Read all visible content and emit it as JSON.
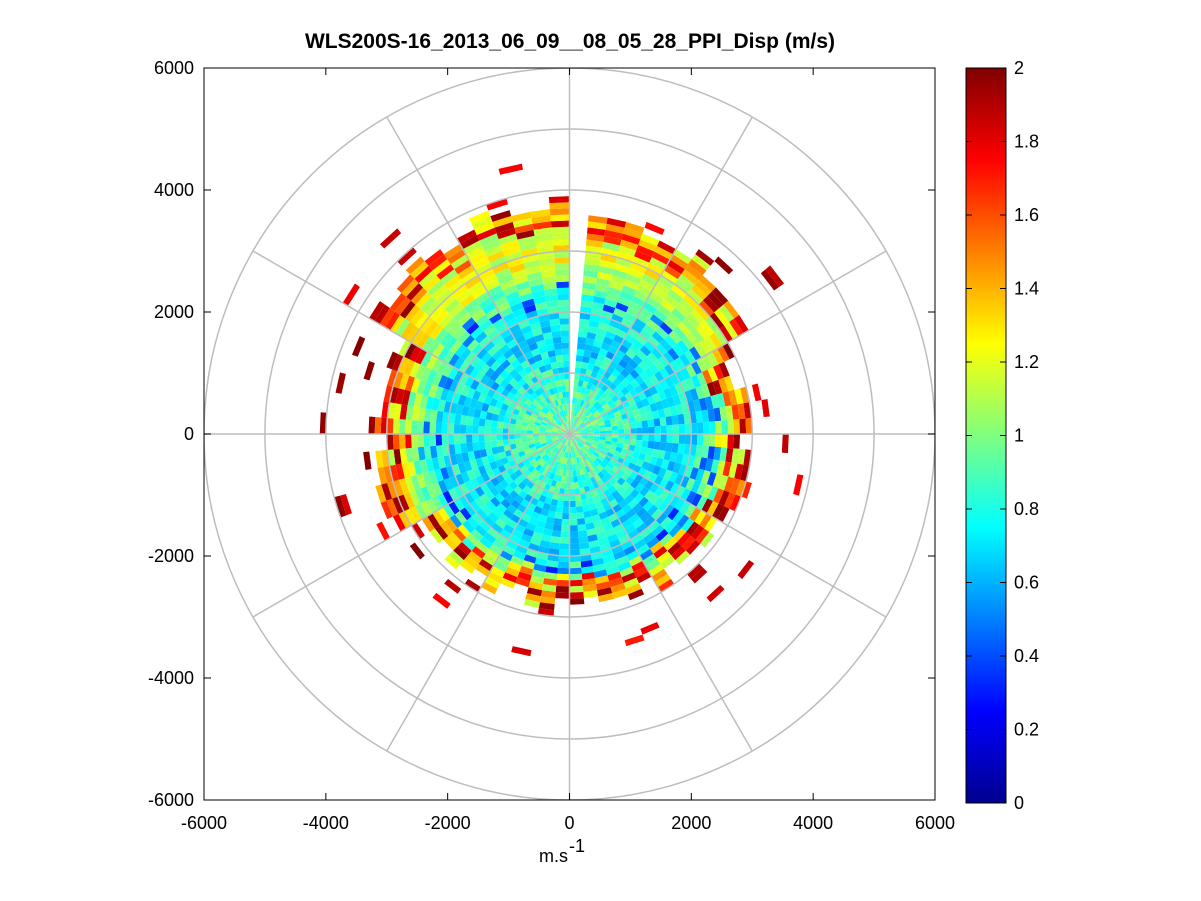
{
  "chart_data": {
    "type": "heatmap",
    "subtype": "polar-ppi",
    "title": "WLS200S-16_2013_06_09__08_05_28_PPI_Disp (m/s)",
    "xlabel_base": "m.s",
    "xlabel_exp": "-1",
    "ylabel": "",
    "xlim": [
      -6000,
      6000
    ],
    "ylim": [
      -6000,
      6000
    ],
    "x_ticks": [
      -6000,
      -4000,
      -2000,
      0,
      2000,
      4000,
      6000
    ],
    "y_ticks": [
      6000,
      4000,
      2000,
      0,
      -2000,
      -4000,
      -6000
    ],
    "x_tick_labels": [
      "-6000",
      "-4000",
      "-2000",
      "0",
      "2000",
      "4000",
      "6000"
    ],
    "y_tick_labels": [
      "6000",
      "4000",
      "2000",
      "0",
      "-2000",
      "-4000",
      "-6000"
    ],
    "polar_rings": [
      1000,
      2000,
      3000,
      4000,
      5000,
      6000
    ],
    "polar_spokes_deg": [
      0,
      30,
      60,
      90,
      120,
      150,
      180,
      210,
      240,
      270,
      300,
      330
    ],
    "colorbar": {
      "colormap": "jet",
      "min": 0,
      "max": 2,
      "ticks": [
        0,
        0.2,
        0.4,
        0.6,
        0.8,
        1,
        1.2,
        1.4,
        1.6,
        1.8,
        2
      ],
      "tick_labels": [
        "0",
        "0.2",
        "0.4",
        "0.6",
        "0.8",
        "1",
        "1.2",
        "1.4",
        "1.6",
        "1.8",
        "2"
      ]
    },
    "scan": {
      "gap_azimuth_deg": [
        0,
        5
      ],
      "range_gate_m": 100,
      "azimuth_step_deg": 5,
      "inner_field_m": [
        0,
        1000,
        1400,
        2000,
        2300,
        2600,
        2800
      ],
      "inner_field_value": [
        0.95,
        0.8,
        0.7,
        0.75,
        0.9,
        1.05,
        1.2
      ],
      "edge_range_by_sector": [
        {
          "az": [
            5,
            60
          ],
          "edge_m": 3500
        },
        {
          "az": [
            60,
            120
          ],
          "edge_m": 2900
        },
        {
          "az": [
            120,
            180
          ],
          "edge_m": 2800
        },
        {
          "az": [
            180,
            240
          ],
          "edge_m": 2700
        },
        {
          "az": [
            240,
            300
          ],
          "edge_m": 3100
        },
        {
          "az": [
            300,
            360
          ],
          "edge_m": 3700
        }
      ]
    },
    "notes": "Doppler-lidar PPI plan view: displacement values near 0.8–1.0 m/s across the interior, rising to 1.6–2.0 m/s at the outer edge of the measured field."
  },
  "colors": {
    "grid": "#bdbdbd",
    "axis": "#000000",
    "background": "#ffffff"
  }
}
